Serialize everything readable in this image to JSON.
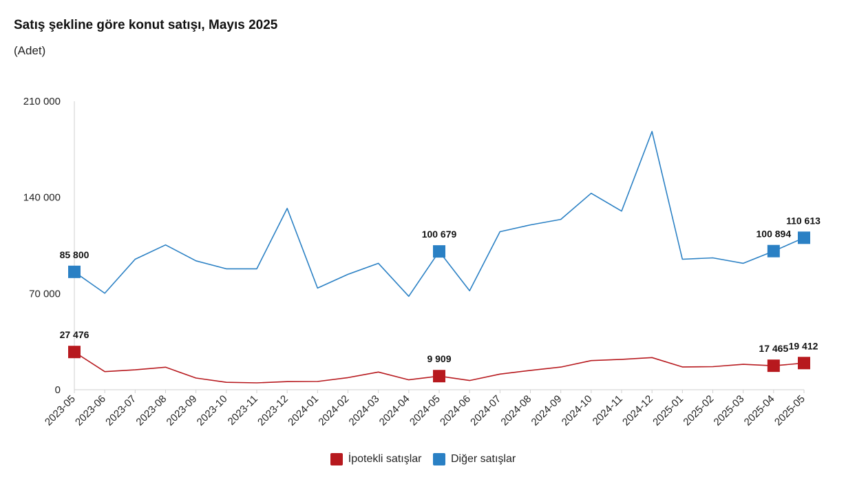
{
  "title": "Satış şekline göre konut satışı, Mayıs 2025",
  "subtitle": "(Adet)",
  "colors": {
    "ipotekli": "#b7191e",
    "diger": "#2a80c4",
    "axis": "#cfcfcf"
  },
  "chart_data": {
    "type": "line",
    "title": "Satış şekline göre konut satışı, Mayıs 2025",
    "ylabel": "(Adet)",
    "ylim": [
      0,
      210000
    ],
    "yticks": [
      0,
      70000,
      140000,
      210000
    ],
    "ytick_labels": [
      "0",
      "70 000",
      "140 000",
      "210 000"
    ],
    "grid": false,
    "legend_position": "bottom",
    "x": [
      "2023-05",
      "2023-06",
      "2023-07",
      "2023-08",
      "2023-09",
      "2023-10",
      "2023-11",
      "2023-12",
      "2024-01",
      "2024-02",
      "2024-03",
      "2024-04",
      "2024-05",
      "2024-06",
      "2024-07",
      "2024-08",
      "2024-09",
      "2024-10",
      "2024-11",
      "2024-12",
      "2025-01",
      "2025-02",
      "2025-03",
      "2025-04",
      "2025-05"
    ],
    "series": [
      {
        "name": "İpotekli satışlar",
        "color": "#b7191e",
        "values": [
          27476,
          13200,
          14500,
          16400,
          8500,
          5400,
          5000,
          5900,
          6000,
          8800,
          12900,
          7200,
          9909,
          6700,
          11400,
          14100,
          16500,
          21200,
          22100,
          23400,
          16600,
          16800,
          18500,
          17465,
          19412
        ],
        "labels": {
          "0": "27 476",
          "12": "9 909",
          "23": "17 465",
          "24": "19 412"
        }
      },
      {
        "name": "Diğer satışlar",
        "color": "#2a80c4",
        "values": [
          85800,
          70200,
          95000,
          105400,
          93800,
          88000,
          88000,
          132000,
          74000,
          84000,
          92000,
          68000,
          100679,
          72000,
          115000,
          120000,
          124000,
          143000,
          130000,
          188000,
          95000,
          96000,
          92000,
          100894,
          110613
        ],
        "labels": {
          "0": "85 800",
          "12": "100 679",
          "23": "100 894",
          "24": "110 613"
        }
      }
    ]
  }
}
